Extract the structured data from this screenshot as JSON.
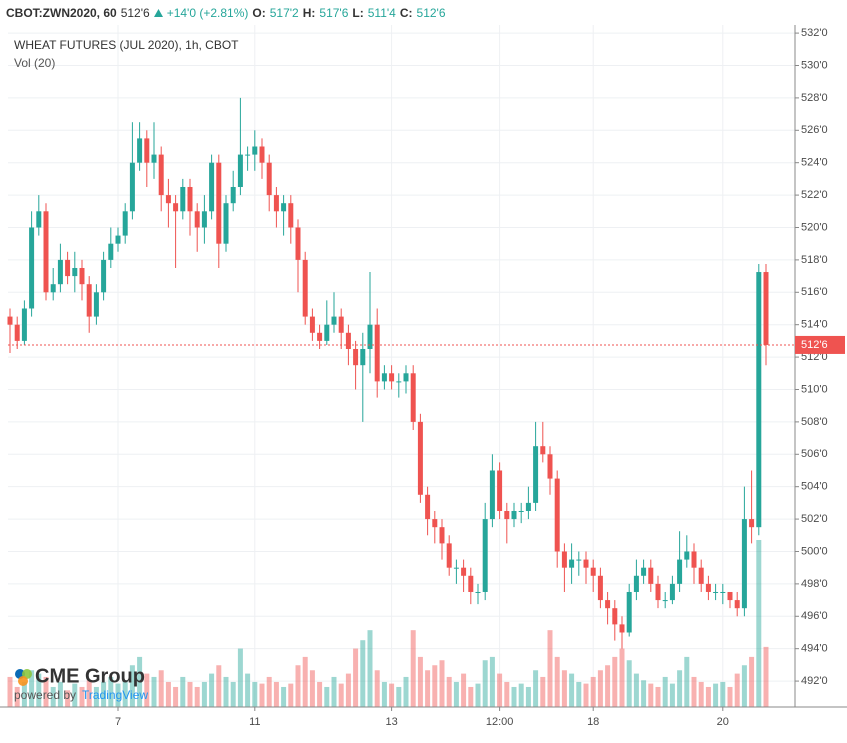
{
  "header": {
    "symbol": "CBOT:ZWN2020, 60",
    "price": "512'6",
    "change": "+14'0 (+2.81%)",
    "o_label": "O:",
    "o": "517'2",
    "h_label": "H:",
    "h": "517'6",
    "l_label": "L:",
    "l": "511'4",
    "c_label": "C:",
    "c": "512'6"
  },
  "watermark": {
    "brand": "CME Group",
    "powered": "powered by",
    "platform": "TradingView"
  },
  "chart_data": {
    "type": "candlestick",
    "title": "WHEAT FUTURES (JUL 2020), 1h, CBOT",
    "subtitle": "Vol (20)",
    "categories": [
      null,
      null,
      null,
      null,
      null,
      null,
      null,
      null,
      null,
      null,
      null,
      null,
      null,
      null,
      null,
      "7",
      null,
      null,
      null,
      null,
      null,
      null,
      null,
      null,
      null,
      null,
      null,
      null,
      null,
      null,
      null,
      null,
      null,
      null,
      "11",
      null,
      null,
      null,
      null,
      null,
      null,
      null,
      null,
      null,
      null,
      null,
      null,
      null,
      null,
      null,
      null,
      null,
      null,
      "13",
      null,
      null,
      null,
      null,
      null,
      null,
      null,
      null,
      null,
      null,
      null,
      null,
      null,
      null,
      "12:00",
      null,
      null,
      null,
      null,
      null,
      null,
      null,
      null,
      null,
      null,
      null,
      null,
      "18",
      null,
      null,
      null,
      null,
      null,
      null,
      null,
      null,
      null,
      null,
      null,
      null,
      null,
      null,
      null,
      null,
      null,
      "20",
      null,
      null,
      null,
      null,
      null,
      null
    ],
    "open": [
      514.5,
      514,
      513,
      515,
      520,
      521,
      516,
      516.5,
      518,
      517,
      517.5,
      516.5,
      514.5,
      516,
      518,
      519,
      519.5,
      521,
      524,
      525.5,
      524,
      524.5,
      522,
      521.5,
      521,
      522.5,
      521,
      520,
      521,
      524,
      519,
      521.5,
      522.5,
      524.5,
      524.5,
      525,
      524,
      522,
      521,
      521.5,
      520,
      518,
      514.5,
      513.5,
      513,
      514,
      514.5,
      513.5,
      512.5,
      511.5,
      512.5,
      514,
      510.5,
      511,
      510.5,
      510.5,
      511,
      508,
      503.5,
      502,
      501.5,
      500.5,
      499,
      499,
      498.5,
      497.5,
      497.5,
      502,
      505,
      502.5,
      502,
      502.5,
      502.5,
      503,
      506.5,
      506,
      504.5,
      500,
      499,
      499.5,
      499.5,
      499,
      498.5,
      497,
      496.5,
      495.5,
      495,
      497.5,
      498.5,
      499,
      498,
      497,
      497,
      498,
      499.5,
      500,
      499,
      498,
      497.5,
      497.5,
      497.5,
      497,
      496.5,
      502,
      501.5,
      517.25
    ],
    "high": [
      515,
      514.5,
      515.5,
      521,
      522,
      521.5,
      517.5,
      519,
      518.5,
      518.5,
      518,
      517,
      516.5,
      518.5,
      520,
      520,
      521.5,
      526.5,
      526.5,
      526,
      526.5,
      525,
      523,
      522,
      523,
      523,
      521.5,
      522,
      524.5,
      524.5,
      522,
      523.5,
      528,
      525,
      526,
      525.5,
      524.5,
      522.5,
      522,
      522,
      520.5,
      518.5,
      515,
      514,
      515.5,
      516,
      515,
      514,
      513,
      513.5,
      517.25,
      515,
      511.5,
      511.5,
      511,
      511.5,
      511.5,
      508.5,
      504,
      502.5,
      502,
      501,
      499.5,
      499.5,
      499,
      498,
      503,
      506,
      505.5,
      503,
      503,
      503,
      504,
      508,
      508,
      506.5,
      505,
      500.5,
      500.5,
      500,
      500,
      499.5,
      499,
      497.5,
      497,
      496,
      498,
      499.5,
      499.5,
      499.5,
      498.5,
      497.5,
      498.5,
      501.25,
      501,
      500.5,
      499.5,
      498.5,
      498,
      498,
      497.5,
      497.5,
      504,
      505,
      517.75,
      517.75
    ],
    "low": [
      512.25,
      512.5,
      512.75,
      514.5,
      519.5,
      515.5,
      515.5,
      516,
      516.5,
      516,
      515.5,
      513.5,
      514,
      515.5,
      517.5,
      518.5,
      519,
      520.5,
      523.5,
      522.5,
      523,
      521,
      520,
      517.5,
      520.5,
      519.5,
      518.5,
      519,
      520.5,
      517.5,
      518.5,
      521,
      522,
      523.5,
      523.5,
      523,
      521,
      520,
      519.5,
      519,
      516,
      514,
      513,
      512.5,
      512.75,
      513.5,
      512.5,
      511.5,
      510,
      508,
      511,
      509.5,
      510,
      510,
      509.5,
      509.75,
      507.5,
      503,
      501,
      500.5,
      499.5,
      498.5,
      498,
      497.5,
      496.75,
      496.75,
      497,
      501.5,
      502,
      500.5,
      501.5,
      501.75,
      502,
      502.5,
      505.5,
      503.5,
      499,
      497.5,
      498,
      498.5,
      498,
      497.5,
      496.5,
      495.5,
      494.5,
      494,
      494.75,
      497,
      498,
      497.5,
      496.5,
      496.5,
      496.75,
      497.5,
      499,
      498,
      497.5,
      497,
      497,
      496.75,
      496.5,
      496,
      496,
      500.5,
      501,
      511.5
    ],
    "close": [
      514,
      513,
      515,
      520,
      521,
      516,
      516.5,
      518,
      517,
      517.5,
      516.5,
      514.5,
      516,
      518,
      519,
      519.5,
      521,
      524,
      525.5,
      524,
      524.5,
      522,
      521.5,
      521,
      522.5,
      521,
      520,
      521,
      524,
      519,
      521.5,
      522.5,
      524.5,
      524.5,
      525,
      524,
      522,
      521,
      521.5,
      520,
      518,
      514.5,
      513.5,
      513,
      514,
      514.5,
      513.5,
      512.5,
      511.5,
      512.5,
      514,
      510.5,
      511,
      510.5,
      510.5,
      511,
      508,
      503.5,
      502,
      501.5,
      500.5,
      499,
      499,
      498.5,
      497.5,
      497.5,
      502,
      505,
      502.5,
      502,
      502.5,
      502.5,
      503,
      506.5,
      506,
      504.5,
      500,
      499,
      499.5,
      499.5,
      499,
      498.5,
      497,
      496.5,
      495.5,
      495,
      497.5,
      498.5,
      499,
      498,
      497,
      497,
      498,
      499.5,
      500,
      499,
      498,
      497.5,
      497.5,
      497.5,
      497,
      496.5,
      502,
      501.5,
      517.25,
      512.75
    ],
    "volume": [
      18,
      12,
      15,
      22,
      20,
      18,
      12,
      15,
      10,
      14,
      12,
      16,
      12,
      15,
      18,
      14,
      16,
      25,
      30,
      20,
      18,
      22,
      15,
      12,
      18,
      15,
      12,
      15,
      20,
      25,
      18,
      15,
      35,
      20,
      15,
      14,
      18,
      15,
      12,
      14,
      25,
      30,
      22,
      15,
      12,
      18,
      14,
      20,
      35,
      40,
      46,
      22,
      15,
      14,
      12,
      18,
      46,
      30,
      22,
      25,
      28,
      18,
      15,
      20,
      12,
      14,
      28,
      30,
      20,
      15,
      12,
      14,
      12,
      22,
      18,
      46,
      30,
      22,
      20,
      15,
      14,
      18,
      22,
      25,
      30,
      35,
      28,
      20,
      16,
      14,
      12,
      18,
      14,
      22,
      30,
      18,
      15,
      12,
      14,
      15,
      12,
      20,
      25,
      30,
      100,
      36
    ],
    "volume_ylim": [
      0,
      100
    ],
    "up_color": "#26a69a",
    "down_color": "#ef5350",
    "ylim": [
      490.4,
      532.5
    ],
    "yticks": [
      {
        "value": 492,
        "label": "492'0"
      },
      {
        "value": 494,
        "label": "494'0"
      },
      {
        "value": 496,
        "label": "496'0"
      },
      {
        "value": 498,
        "label": "498'0"
      },
      {
        "value": 500,
        "label": "500'0"
      },
      {
        "value": 502,
        "label": "502'0"
      },
      {
        "value": 504,
        "label": "504'0"
      },
      {
        "value": 506,
        "label": "506'0"
      },
      {
        "value": 508,
        "label": "508'0"
      },
      {
        "value": 510,
        "label": "510'0"
      },
      {
        "value": 512,
        "label": "512'0"
      },
      {
        "value": 514,
        "label": "514'0"
      },
      {
        "value": 516,
        "label": "516'0"
      },
      {
        "value": 518,
        "label": "518'0"
      },
      {
        "value": 520,
        "label": "520'0"
      },
      {
        "value": 522,
        "label": "522'0"
      },
      {
        "value": 524,
        "label": "524'0"
      },
      {
        "value": 526,
        "label": "526'0"
      },
      {
        "value": 528,
        "label": "528'0"
      },
      {
        "value": 530,
        "label": "530'0"
      },
      {
        "value": 532,
        "label": "532'0"
      }
    ],
    "last_price": {
      "value": 512.75,
      "label": "512'6"
    },
    "grid": true
  }
}
